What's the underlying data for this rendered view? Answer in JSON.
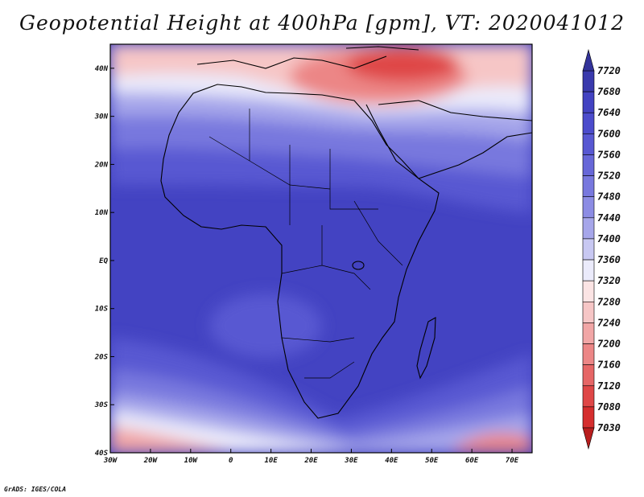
{
  "title": "Geopotential Height at 400hPa [gpm], VT: 2020041012",
  "credit": "GrADS: IGES/COLA",
  "map": {
    "lon_range": [
      -30,
      75
    ],
    "lat_range": [
      -40,
      45
    ],
    "lon_ticks": [
      {
        "value": -30,
        "label": "30W"
      },
      {
        "value": -20,
        "label": "20W"
      },
      {
        "value": -10,
        "label": "10W"
      },
      {
        "value": 0,
        "label": "0"
      },
      {
        "value": 10,
        "label": "10E"
      },
      {
        "value": 20,
        "label": "20E"
      },
      {
        "value": 30,
        "label": "30E"
      },
      {
        "value": 40,
        "label": "40E"
      },
      {
        "value": 50,
        "label": "50E"
      },
      {
        "value": 60,
        "label": "60E"
      },
      {
        "value": 70,
        "label": "70E"
      }
    ],
    "lat_ticks": [
      {
        "value": 40,
        "label": "40N"
      },
      {
        "value": 30,
        "label": "30N"
      },
      {
        "value": 20,
        "label": "20N"
      },
      {
        "value": 10,
        "label": "10N"
      },
      {
        "value": 0,
        "label": "EQ"
      },
      {
        "value": -10,
        "label": "10S"
      },
      {
        "value": -20,
        "label": "20S"
      },
      {
        "value": -30,
        "label": "30S"
      },
      {
        "value": -40,
        "label": "40S"
      }
    ]
  },
  "colorbar": {
    "levels": [
      "7720",
      "7680",
      "7640",
      "7600",
      "7560",
      "7520",
      "7480",
      "7440",
      "7400",
      "7360",
      "7320",
      "7280",
      "7240",
      "7200",
      "7160",
      "7120",
      "7080",
      "7030"
    ],
    "colors": [
      "#33339a",
      "#3a3aad",
      "#4343c2",
      "#4c4ccc",
      "#5858d2",
      "#6767d8",
      "#7878de",
      "#8c8ce4",
      "#a6a6ea",
      "#c8c8f2",
      "#ebebfb",
      "#fbe4e4",
      "#f6c6c6",
      "#f1a6a6",
      "#ec8686",
      "#e66666",
      "#df4747",
      "#d52e2e",
      "#b81d1d"
    ]
  }
}
